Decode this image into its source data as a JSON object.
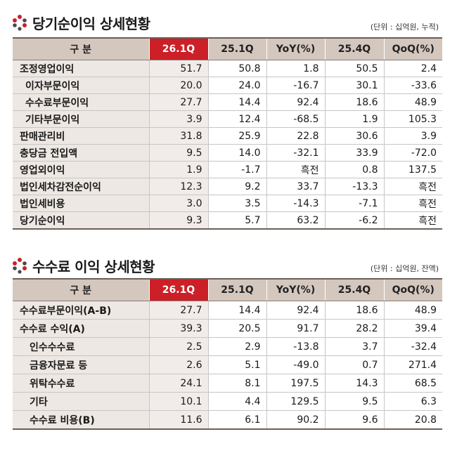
{
  "colors": {
    "header_bg": "#d4c7be",
    "current_header": "#cc1f27",
    "label_bg": "#ede8e3",
    "current_cell_bg": "#f1ecea",
    "accent_dark": "#4a4a4a"
  },
  "net_income": {
    "icon": "company-logo-icon",
    "title": "당기순이익 상세현황",
    "unit": "(단위 : 십억원, 누적)",
    "headers": [
      "구 분",
      "26.1Q",
      "25.1Q",
      "YoY(%)",
      "25.4Q",
      "QoQ(%)"
    ],
    "rows": [
      [
        "조정영업이익",
        "51.7",
        "50.8",
        "1.8",
        "50.5",
        "2.4"
      ],
      [
        "이자부문이익",
        "20.0",
        "24.0",
        "-16.7",
        "30.1",
        "-33.6"
      ],
      [
        "수수료부문이익",
        "27.7",
        "14.4",
        "92.4",
        "18.6",
        "48.9"
      ],
      [
        "기타부문이익",
        "3.9",
        "12.4",
        "-68.5",
        "1.9",
        "105.3"
      ],
      [
        "판매관리비",
        "31.8",
        "25.9",
        "22.8",
        "30.6",
        "3.9"
      ],
      [
        "충당금 전입액",
        "9.5",
        "14.0",
        "-32.1",
        "33.9",
        "-72.0"
      ],
      [
        "영업외이익",
        "1.9",
        "-1.7",
        "흑전",
        "0.8",
        "137.5"
      ],
      [
        "법인세차감전순이익",
        "12.3",
        "9.2",
        "33.7",
        "-13.3",
        "흑전"
      ],
      [
        "법인세비용",
        "3.0",
        "3.5",
        "-14.3",
        "-7.1",
        "흑전"
      ],
      [
        "당기순이익",
        "9.3",
        "5.7",
        "63.2",
        "-6.2",
        "흑전"
      ]
    ]
  },
  "fee_income": {
    "icon": "company-logo-icon",
    "title": "수수료 이익 상세현황",
    "unit": "(단위 : 십억원, 잔액)",
    "headers": [
      "구 분",
      "26.1Q",
      "25.1Q",
      "YoY(%)",
      "25.4Q",
      "QoQ(%)"
    ],
    "rows": [
      [
        "수수료부문이익(A-B)",
        "27.7",
        "14.4",
        "92.4",
        "18.6",
        "48.9"
      ],
      [
        "수수료 수익(A)",
        "39.3",
        "20.5",
        "91.7",
        "28.2",
        "39.4"
      ],
      [
        "인수수수료",
        "2.5",
        "2.9",
        "-13.8",
        "3.7",
        "-32.4"
      ],
      [
        "금융자문료 등",
        "2.6",
        "5.1",
        "-49.0",
        "0.7",
        "271.4"
      ],
      [
        "위탁수수료",
        "24.1",
        "8.1",
        "197.5",
        "14.3",
        "68.5"
      ],
      [
        "기타",
        "10.1",
        "4.4",
        "129.5",
        "9.5",
        "6.3"
      ],
      [
        "수수료 비용(B)",
        "11.6",
        "6.1",
        "90.2",
        "9.6",
        "20.8"
      ]
    ]
  }
}
